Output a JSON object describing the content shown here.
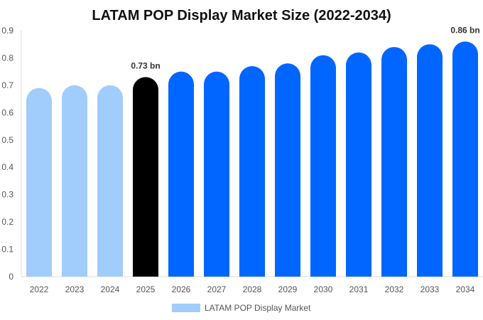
{
  "chart_data": {
    "type": "bar",
    "title": "LATAM POP Display Market Size (2022-2034)",
    "xlabel": "",
    "ylabel": "",
    "categories": [
      "2022",
      "2023",
      "2024",
      "2025",
      "2026",
      "2027",
      "2028",
      "2029",
      "2030",
      "2031",
      "2032",
      "2033",
      "2034"
    ],
    "series": [
      {
        "name": "LATAM POP Display Market",
        "values": [
          0.69,
          0.7,
          0.7,
          0.73,
          0.75,
          0.75,
          0.77,
          0.78,
          0.81,
          0.82,
          0.84,
          0.85,
          0.86
        ]
      }
    ],
    "ylim": [
      0,
      0.9
    ],
    "yticks": [
      "0",
      "0.1",
      "0.2",
      "0.3",
      "0.4",
      "0.5",
      "0.6",
      "0.7",
      "0.8",
      "0.9"
    ],
    "data_labels": [
      {
        "category": "2025",
        "text": "0.73 bn"
      },
      {
        "category": "2034",
        "text": "0.86 bn"
      }
    ],
    "colors": {
      "historical": "#a0cdfb",
      "current": "#000000",
      "forecast": "#0066ff",
      "legend_swatch": "#a0cdfb"
    },
    "current_category": "2025",
    "grid": false,
    "legend": {
      "position": "bottom",
      "entries": [
        "LATAM POP Display Market"
      ]
    }
  }
}
